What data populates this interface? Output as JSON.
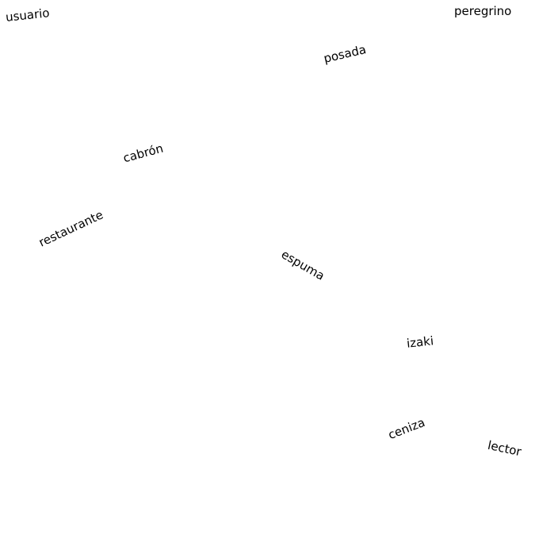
{
  "words": {
    "usuario": "usuario",
    "peregrino": "peregrino",
    "posada": "posada",
    "cabron": "cabrón",
    "restaurante": "restaurante",
    "espuma": "espuma",
    "izaki": "izaki",
    "ceniza": "ceniza",
    "lector": "lector"
  },
  "colors": {
    "background": "#ffffff",
    "text": "#000000"
  }
}
